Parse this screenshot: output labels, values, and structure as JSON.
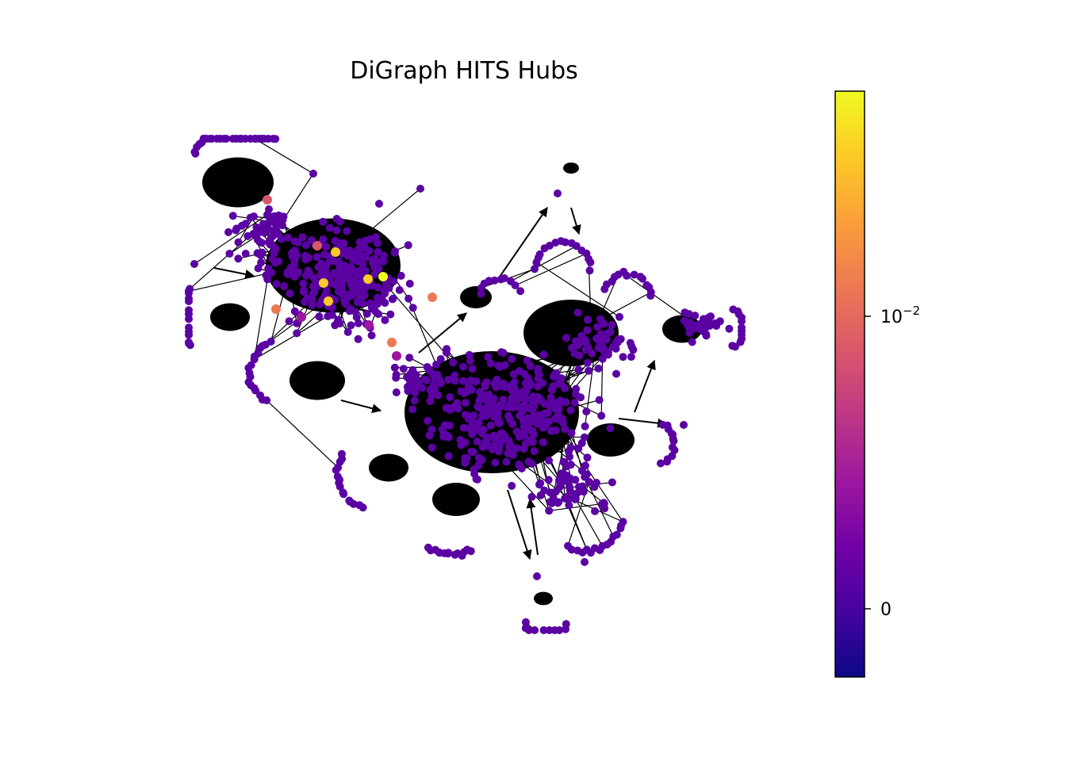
{
  "figure": {
    "title": "DiGraph HITS Hubs"
  },
  "colorbar": {
    "colormap": "plasma",
    "scale": "symlog",
    "tick_labels": [
      {
        "base": "10",
        "exponent": "−2",
        "value": 0.01
      },
      {
        "base": "0",
        "exponent": "",
        "value": 0
      }
    ],
    "colors": [
      "#0d0887",
      "#46039f",
      "#7201a8",
      "#9c179e",
      "#bd3786",
      "#d8576b",
      "#ed7953",
      "#fb9f3a",
      "#fdca26",
      "#f0f921"
    ]
  },
  "graph": {
    "node_color_default": "#5b02a3",
    "edge_color": "#000000",
    "highlight_colors": [
      "#f0f921",
      "#fdca26",
      "#ed7953",
      "#d8576b",
      "#9c179e"
    ]
  }
}
